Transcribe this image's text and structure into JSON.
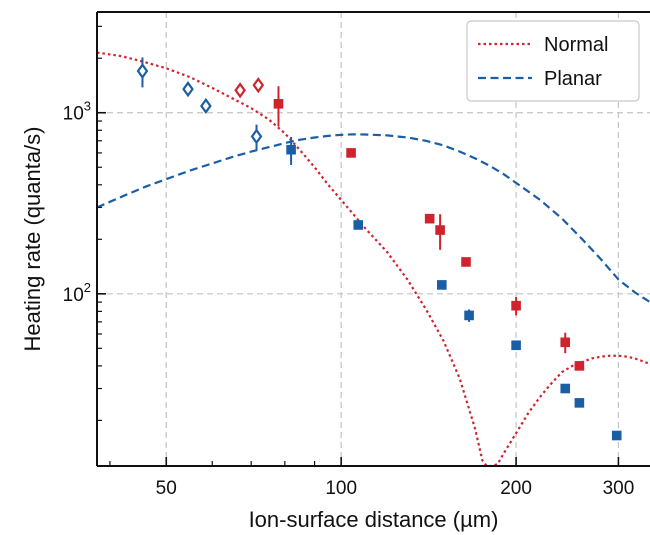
{
  "chart_data": {
    "type": "scatter",
    "title": "",
    "xlabel": "Ion-surface distance (µm)",
    "ylabel": "Heating rate (quanta/s)",
    "xscale": "log",
    "yscale": "log",
    "xlim": [
      38,
      340
    ],
    "ylim": [
      11.2,
      3600
    ],
    "x_ticks": [
      50,
      100,
      200,
      300
    ],
    "x_tick_labels": [
      "50",
      "100",
      "200",
      "300"
    ],
    "y_ticks": [
      100,
      1000
    ],
    "y_tick_labels": [
      "10²",
      "10³"
    ],
    "grid": true,
    "legend_position": "top-right",
    "colors": {
      "red": "#d0232e",
      "blue": "#1a5ea5"
    },
    "curves": [
      {
        "name": "Normal",
        "color": "#d0232e",
        "style": "dotted",
        "x": [
          38,
          42,
          46,
          50,
          55,
          60,
          65,
          70,
          75,
          80,
          85,
          90,
          95,
          100,
          110,
          120,
          130,
          140,
          150,
          160,
          170,
          175,
          178,
          180,
          182,
          186,
          190,
          200,
          210,
          220,
          230,
          240,
          250,
          260,
          270,
          280,
          290,
          300,
          310,
          320,
          330,
          340
        ],
        "y": [
          2150,
          2050,
          1900,
          1760,
          1570,
          1370,
          1200,
          1060,
          920,
          770,
          620,
          500,
          400,
          330,
          230,
          170,
          120,
          82,
          55,
          34,
          18,
          12,
          11.2,
          11.2,
          11.2,
          11.5,
          13,
          17,
          22,
          27,
          32,
          37,
          40,
          42,
          44,
          45,
          45.5,
          45.5,
          45,
          44,
          42.5,
          41
        ]
      },
      {
        "name": "Planar",
        "color": "#1a5ea5",
        "style": "dashed",
        "x": [
          38,
          42,
          46,
          50,
          55,
          60,
          65,
          70,
          75,
          80,
          85,
          90,
          95,
          100,
          105,
          110,
          120,
          130,
          140,
          150,
          160,
          170,
          180,
          190,
          200,
          220,
          240,
          260,
          280,
          300,
          320,
          340
        ],
        "y": [
          300,
          345,
          390,
          430,
          480,
          525,
          570,
          610,
          645,
          680,
          710,
          730,
          745,
          755,
          760,
          758,
          750,
          730,
          700,
          660,
          610,
          560,
          510,
          460,
          410,
          330,
          260,
          200,
          155,
          120,
          102,
          90
        ]
      }
    ],
    "series": [
      {
        "name": "",
        "marker": "open-diamond",
        "color": "#1a5ea5",
        "points": [
          {
            "x": 45.5,
            "y": 1700,
            "err": 320
          },
          {
            "x": 54.5,
            "y": 1350,
            "err": 0
          },
          {
            "x": 58.5,
            "y": 1090,
            "err": 0
          },
          {
            "x": 71.5,
            "y": 740,
            "err": 120
          }
        ]
      },
      {
        "name": "",
        "marker": "open-diamond",
        "color": "#d0232e",
        "points": [
          {
            "x": 67,
            "y": 1330,
            "err": 0
          },
          {
            "x": 72,
            "y": 1420,
            "err": 0
          }
        ]
      },
      {
        "name": "",
        "marker": "filled-square",
        "color": "#d0232e",
        "points": [
          {
            "x": 78,
            "y": 1120,
            "err": 280
          },
          {
            "x": 104,
            "y": 600,
            "err": 0
          },
          {
            "x": 142,
            "y": 260,
            "err": 0
          },
          {
            "x": 148,
            "y": 225,
            "err": 50
          },
          {
            "x": 164,
            "y": 150,
            "err": 0
          },
          {
            "x": 200,
            "y": 86,
            "err": 10
          },
          {
            "x": 243,
            "y": 54,
            "err": 7
          },
          {
            "x": 257,
            "y": 40,
            "err": 0
          }
        ]
      },
      {
        "name": "",
        "marker": "filled-square",
        "color": "#1a5ea5",
        "points": [
          {
            "x": 82,
            "y": 625,
            "err": 110
          },
          {
            "x": 107,
            "y": 240,
            "err": 0
          },
          {
            "x": 149,
            "y": 112,
            "err": 0
          },
          {
            "x": 166,
            "y": 76,
            "err": 6
          },
          {
            "x": 200,
            "y": 52,
            "err": 0
          },
          {
            "x": 243,
            "y": 30,
            "err": 0
          },
          {
            "x": 257,
            "y": 25,
            "err": 0
          },
          {
            "x": 298,
            "y": 16.5,
            "err": 0
          }
        ]
      }
    ]
  }
}
